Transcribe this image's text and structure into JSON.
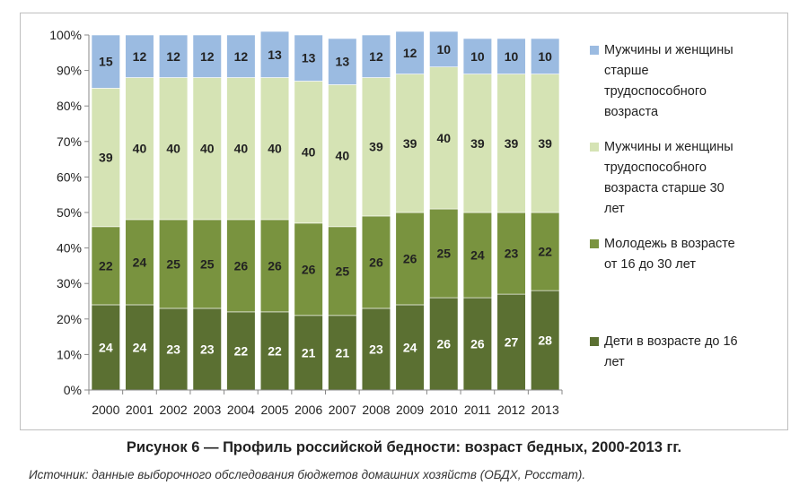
{
  "chart_data": {
    "type": "bar",
    "stacked": true,
    "normalized_percent": true,
    "categories": [
      "2000",
      "2001",
      "2002",
      "2003",
      "2004",
      "2005",
      "2006",
      "2007",
      "2008",
      "2009",
      "2010",
      "2011",
      "2012",
      "2013"
    ],
    "series": [
      {
        "name": "Дети в возрасте до 16 лет",
        "color": "#5b7032",
        "values": [
          24,
          24,
          23,
          23,
          22,
          22,
          21,
          21,
          23,
          24,
          26,
          26,
          27,
          28
        ]
      },
      {
        "name": "Молодежь в возрасте от 16 до 30 лет",
        "color": "#79933f",
        "values": [
          22,
          24,
          25,
          25,
          26,
          26,
          26,
          25,
          26,
          26,
          25,
          24,
          23,
          22
        ]
      },
      {
        "name": "Мужчины и женщины трудоспособного возраста старше 30 лет",
        "color": "#d5e3b4",
        "values": [
          39,
          40,
          40,
          40,
          40,
          40,
          40,
          40,
          39,
          39,
          40,
          39,
          39,
          39
        ]
      },
      {
        "name": "Мужчины и женщины старше трудоспособного возраста",
        "color": "#9bbbe1",
        "values": [
          15,
          12,
          12,
          12,
          12,
          13,
          13,
          13,
          12,
          12,
          10,
          10,
          10,
          10
        ]
      }
    ],
    "y_ticks": [
      "0%",
      "10%",
      "20%",
      "30%",
      "40%",
      "50%",
      "60%",
      "70%",
      "80%",
      "90%",
      "100%"
    ],
    "ylim": [
      0,
      100
    ],
    "grid": false,
    "legend_position": "right",
    "label_colors": [
      "#ffffff",
      "#222222",
      "#222222",
      "#222222"
    ]
  },
  "legend": {
    "items": [
      {
        "lines": [
          "Мужчины и женщины",
          "старше",
          "трудоспособного",
          "возраста"
        ],
        "color": "#9bbbe1"
      },
      {
        "lines": [
          "Мужчины и женщины",
          "трудоспособного",
          "возраста старше 30",
          "лет"
        ],
        "color": "#d5e3b4"
      },
      {
        "lines": [
          "Молодежь в возрасте",
          "от 16 до 30 лет"
        ],
        "color": "#79933f"
      },
      {
        "lines": [
          "Дети в возрасте до 16",
          "лет"
        ],
        "color": "#5b7032"
      }
    ]
  },
  "caption": {
    "title": "Рисунок 6 — Профиль российской бедности: возраст бедных, 2000-2013 гг.",
    "source": "Источник: данные выборочного обследования бюджетов домашних хозяйств (ОБДХ, Росстат)."
  }
}
